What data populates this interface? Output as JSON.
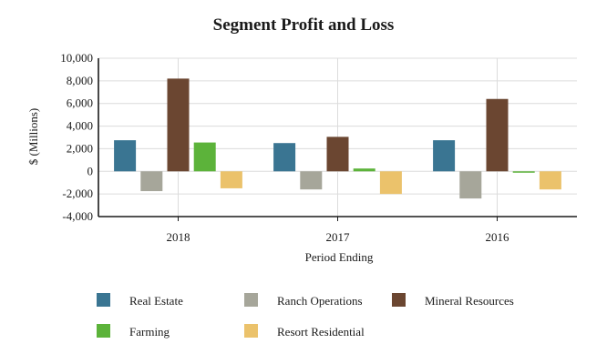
{
  "chart_data": {
    "type": "bar",
    "title": "Segment Profit and Loss",
    "xlabel": "Period Ending",
    "ylabel": "$ (Millions)",
    "ylim": [
      -4000,
      10000
    ],
    "yticks": [
      10000,
      8000,
      6000,
      4000,
      2000,
      0,
      -2000,
      -4000
    ],
    "ytick_labels": [
      "10,000",
      "8,000",
      "6,000",
      "4,000",
      "2,000",
      "0",
      "-2,000",
      "-4,000"
    ],
    "grid": true,
    "legend_position": "bottom",
    "categories": [
      "2018",
      "2017",
      "2016"
    ],
    "series": [
      {
        "name": "Real Estate",
        "color": "#3a7592",
        "values": [
          2750,
          2500,
          2750
        ]
      },
      {
        "name": "Ranch Operations",
        "color": "#a6a69a",
        "values": [
          -1750,
          -1600,
          -2400
        ]
      },
      {
        "name": "Mineral Resources",
        "color": "#6b4631",
        "values": [
          8200,
          3050,
          6400
        ]
      },
      {
        "name": "Farming",
        "color": "#5cb33a",
        "values": [
          2550,
          250,
          -50
        ]
      },
      {
        "name": "Resort Residential",
        "color": "#ebc26b",
        "values": [
          -1500,
          -2000,
          -1600
        ]
      }
    ]
  }
}
